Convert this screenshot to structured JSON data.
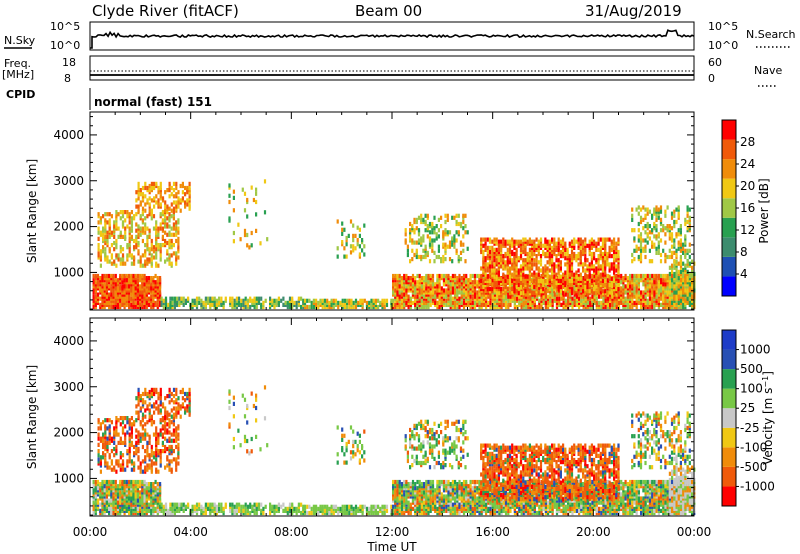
{
  "header": {
    "station": "Clyde River (fitACF)",
    "beam": "Beam 00",
    "date": "31/Aug/2019"
  },
  "nsky_panel": {
    "left_label": "N.Sky",
    "right_label": "N.Search",
    "tick_top_left": "10^5",
    "tick_bottom_left": "10^0",
    "tick_top_right": "10^5",
    "tick_bottom_right": "10^0"
  },
  "freq_panel": {
    "left_label_1": "Freq.",
    "left_label_2": "[MHz]",
    "right_label": "Nave",
    "left_ticks": [
      "18",
      "8"
    ],
    "right_ticks": [
      "60",
      "0"
    ]
  },
  "cpid": {
    "label": "CPID",
    "mode": "normal (fast) 151"
  },
  "colors": {
    "power": [
      "#0000ff",
      "#1e50b4",
      "#3c8c6e",
      "#28a050",
      "#a0c846",
      "#f0c814",
      "#f08c0a",
      "#f05a0a",
      "#ff0000"
    ],
    "velocity": [
      "#ff0000",
      "#f05a0a",
      "#f08c0a",
      "#f0c814",
      "#c8c8c8",
      "#78c846",
      "#28a050",
      "#2850b4",
      "#1e3cc8"
    ]
  },
  "chart_data": [
    {
      "type": "heatmap",
      "quantity": "Power",
      "ylabel": "Slant Range [km]",
      "xlabel": "",
      "ylim": [
        180,
        4500
      ],
      "yticks": [
        "1000",
        "2000",
        "3000",
        "4000"
      ],
      "xlim": [
        0,
        24
      ],
      "colorbar": {
        "label": "Power [dB]",
        "range": [
          0,
          32
        ],
        "ticks": [
          "4",
          "8",
          "12",
          "16",
          "20",
          "24",
          "28"
        ]
      }
    },
    {
      "type": "heatmap",
      "quantity": "Velocity",
      "ylabel": "Slant Range [km]",
      "xlabel": "Time UT",
      "ylim": [
        180,
        4500
      ],
      "yticks": [
        "1000",
        "2000",
        "3000",
        "4000"
      ],
      "xlim": [
        0,
        24
      ],
      "xticks": [
        "00:00",
        "04:00",
        "08:00",
        "12:00",
        "16:00",
        "20:00",
        "00:00"
      ],
      "colorbar": {
        "label": "Velocity [m s^-1]",
        "ticks": [
          "1000",
          "500",
          "100",
          "25",
          "-25",
          "-100",
          "-500",
          "-1000"
        ]
      }
    }
  ]
}
